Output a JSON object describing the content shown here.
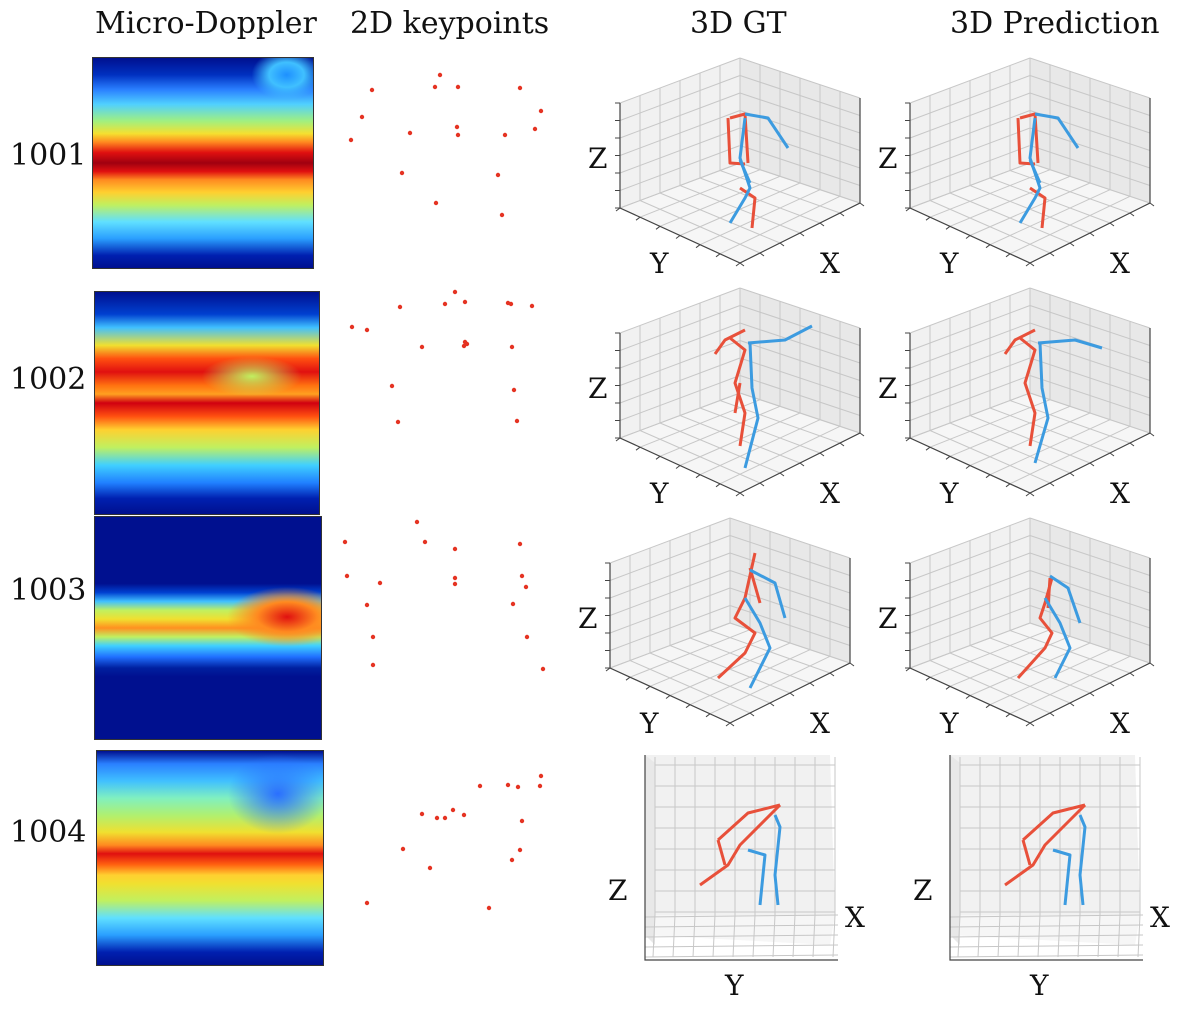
{
  "headers": {
    "doppler": "Micro-Doppler",
    "keypoints": "2D keypoints",
    "gt": "3D GT",
    "pred": "3D Prediction"
  },
  "axes": {
    "x": "X",
    "y": "Y",
    "z": "Z"
  },
  "colors": {
    "left_limb": "#e8503a",
    "right_limb": "#3c9be0",
    "keypoint": "#e53322"
  },
  "rows": [
    {
      "id": "1001"
    },
    {
      "id": "1002"
    },
    {
      "id": "1003"
    },
    {
      "id": "1004"
    }
  ]
}
